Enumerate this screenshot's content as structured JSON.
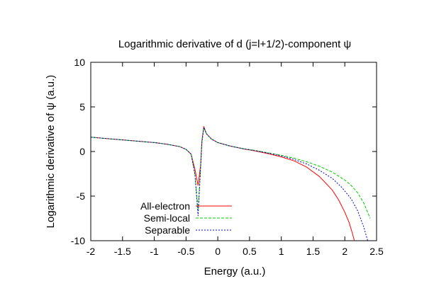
{
  "chart_data": {
    "type": "line",
    "title": "Logarithmic derivative of d (j=l+1/2)-component ψ",
    "xlabel": "Energy (a.u.)",
    "ylabel": "Logarithmic derivative of ψ (a.u.)",
    "xlim": [
      -2,
      2.5
    ],
    "ylim": [
      -10,
      10
    ],
    "xticks": [
      "-2",
      "-1.5",
      "-1",
      "-0.5",
      "0",
      "0.5",
      "1",
      "1.5",
      "2",
      "2.5"
    ],
    "yticks": [
      "10",
      "5",
      "0",
      "-5",
      "-10"
    ],
    "grid": false,
    "legend_position": "bottom-left",
    "series": [
      {
        "name": "All-electron",
        "color": "#ff0000",
        "dash": "solid",
        "points": [
          [
            -2,
            1.6
          ],
          [
            -1.75,
            1.45
          ],
          [
            -1.5,
            1.3
          ],
          [
            -1.25,
            1.15
          ],
          [
            -1,
            1.0
          ],
          [
            -0.8,
            0.82
          ],
          [
            -0.6,
            0.55
          ],
          [
            -0.5,
            0.25
          ],
          [
            -0.42,
            -0.3
          ],
          [
            -0.36,
            -2.0
          ],
          [
            -0.31,
            -3.8
          ],
          [
            -0.27,
            -1.5
          ],
          [
            -0.25,
            1.2
          ],
          [
            -0.22,
            2.8
          ],
          [
            -0.18,
            2.0
          ],
          [
            -0.1,
            1.4
          ],
          [
            0,
            1.0
          ],
          [
            0.2,
            0.6
          ],
          [
            0.4,
            0.3
          ],
          [
            0.6,
            0.05
          ],
          [
            0.8,
            -0.25
          ],
          [
            1.0,
            -0.6
          ],
          [
            1.2,
            -1.05
          ],
          [
            1.4,
            -1.75
          ],
          [
            1.6,
            -2.8
          ],
          [
            1.8,
            -4.3
          ],
          [
            1.9,
            -5.4
          ],
          [
            2.0,
            -6.8
          ],
          [
            2.07,
            -8.0
          ],
          [
            2.12,
            -9.2
          ],
          [
            2.15,
            -10
          ]
        ]
      },
      {
        "name": "Semi-local",
        "color": "#00cc00",
        "dash": "dashed",
        "points": [
          [
            -2,
            1.6
          ],
          [
            -1.75,
            1.45
          ],
          [
            -1.5,
            1.3
          ],
          [
            -1.25,
            1.15
          ],
          [
            -1,
            1.0
          ],
          [
            -0.8,
            0.82
          ],
          [
            -0.6,
            0.55
          ],
          [
            -0.5,
            0.25
          ],
          [
            -0.42,
            -0.3
          ],
          [
            -0.36,
            -2.5
          ],
          [
            -0.31,
            -6.5
          ],
          [
            -0.28,
            -3.0
          ],
          [
            -0.25,
            1.0
          ],
          [
            -0.22,
            2.7
          ],
          [
            -0.18,
            2.0
          ],
          [
            -0.1,
            1.4
          ],
          [
            0,
            1.0
          ],
          [
            0.2,
            0.6
          ],
          [
            0.4,
            0.32
          ],
          [
            0.6,
            0.1
          ],
          [
            0.8,
            -0.15
          ],
          [
            1.0,
            -0.42
          ],
          [
            1.2,
            -0.75
          ],
          [
            1.4,
            -1.15
          ],
          [
            1.6,
            -1.65
          ],
          [
            1.8,
            -2.3
          ],
          [
            2.0,
            -3.2
          ],
          [
            2.1,
            -3.8
          ],
          [
            2.2,
            -4.6
          ],
          [
            2.3,
            -5.8
          ],
          [
            2.4,
            -7.5
          ]
        ]
      },
      {
        "name": "Separable",
        "color": "#0000cc",
        "dash": "dotted",
        "points": [
          [
            -2,
            1.6
          ],
          [
            -1.75,
            1.45
          ],
          [
            -1.5,
            1.3
          ],
          [
            -1.25,
            1.15
          ],
          [
            -1,
            1.0
          ],
          [
            -0.8,
            0.82
          ],
          [
            -0.6,
            0.55
          ],
          [
            -0.5,
            0.25
          ],
          [
            -0.42,
            -0.3
          ],
          [
            -0.36,
            -2.6
          ],
          [
            -0.31,
            -7.2
          ],
          [
            -0.28,
            -3.2
          ],
          [
            -0.25,
            1.0
          ],
          [
            -0.22,
            2.7
          ],
          [
            -0.18,
            2.0
          ],
          [
            -0.1,
            1.4
          ],
          [
            0,
            1.0
          ],
          [
            0.2,
            0.6
          ],
          [
            0.4,
            0.32
          ],
          [
            0.6,
            0.08
          ],
          [
            0.8,
            -0.2
          ],
          [
            1.0,
            -0.5
          ],
          [
            1.2,
            -0.9
          ],
          [
            1.4,
            -1.4
          ],
          [
            1.6,
            -2.1
          ],
          [
            1.8,
            -3.0
          ],
          [
            1.95,
            -4.0
          ],
          [
            2.1,
            -5.3
          ],
          [
            2.2,
            -6.6
          ],
          [
            2.3,
            -8.5
          ],
          [
            2.36,
            -10
          ]
        ]
      }
    ]
  }
}
